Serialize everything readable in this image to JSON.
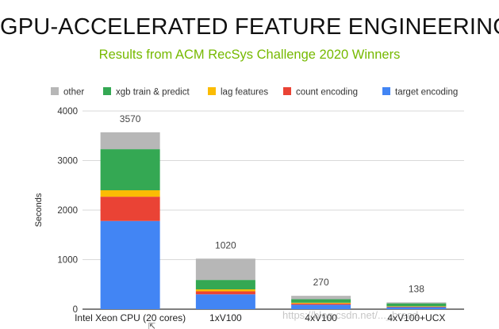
{
  "slide": {
    "title": "GPU-ACCELERATED FEATURE ENGINEERING",
    "subtitle": "Results from ACM RecSys Challenge 2020 Winners",
    "watermark": "https://blog.csdn.net/..._bread"
  },
  "colors": {
    "target encoding": "#4285f4",
    "count encoding": "#ea4335",
    "lag features": "#fbbc04",
    "xgb train & predict": "#34a853",
    "other": "#b7b7b7",
    "title": "#111111",
    "subtitle": "#76b900"
  },
  "chart_data": {
    "type": "bar",
    "stacked": true,
    "title": "",
    "xlabel": "",
    "ylabel": "Seconds",
    "ylim": [
      0,
      4000
    ],
    "yticks": [
      0,
      1000,
      2000,
      3000,
      4000
    ],
    "grid": true,
    "legend_position": "top",
    "legend_order": [
      "other",
      "xgb train & predict",
      "lag features",
      "count encoding",
      "target encoding"
    ],
    "categories": [
      "Intel Xeon CPU (20 cores)",
      "1xV100",
      "4xV100",
      "4xV100+UCX"
    ],
    "series": [
      {
        "name": "target encoding",
        "values": [
          1780,
          300,
          90,
          40
        ]
      },
      {
        "name": "count encoding",
        "values": [
          490,
          60,
          25,
          10
        ]
      },
      {
        "name": "lag features",
        "values": [
          130,
          40,
          15,
          8
        ]
      },
      {
        "name": "xgb train & predict",
        "values": [
          830,
          190,
          70,
          60
        ]
      },
      {
        "name": "other",
        "values": [
          340,
          430,
          70,
          20
        ]
      }
    ],
    "totals": [
      3570,
      1020,
      270,
      138
    ]
  }
}
